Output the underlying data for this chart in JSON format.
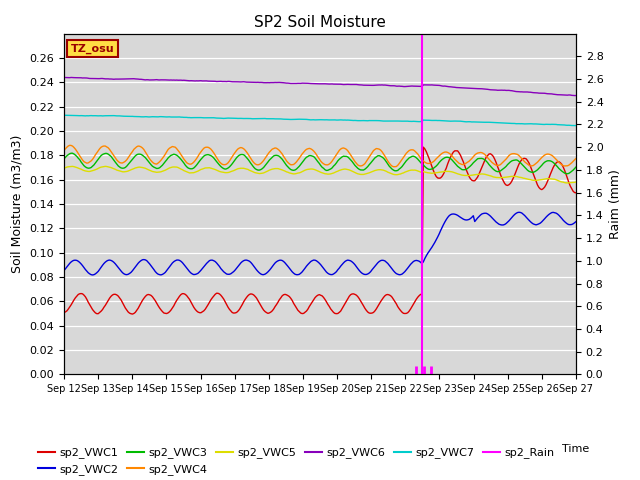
{
  "title": "SP2 Soil Moisture",
  "ylabel_left": "Soil Moisture (m3/m3)",
  "ylabel_right": "Raim (mm)",
  "xlabel": "Time",
  "ylim_left": [
    0.0,
    0.28
  ],
  "ylim_right": [
    0.0,
    3.0
  ],
  "x_tick_labels": [
    "Sep 12",
    "Sep 13",
    "Sep 14",
    "Sep 15",
    "Sep 16",
    "Sep 17",
    "Sep 18",
    "Sep 19",
    "Sep 20",
    "Sep 21",
    "Sep 22",
    "Sep 23",
    "Sep 24",
    "Sep 25",
    "Sep 26",
    "Sep 27"
  ],
  "rain_event_day": 10.5,
  "plot_bg_color": "#d8d8d8",
  "tz_osu_box_color": "#ffdd44",
  "tz_osu_text": "TZ_osu",
  "line_colors": {
    "VWC1": "#dd0000",
    "VWC2": "#0000dd",
    "VWC3": "#00bb00",
    "VWC4": "#ff8800",
    "VWC5": "#dddd00",
    "VWC6": "#8800bb",
    "VWC7": "#00cccc",
    "Rain": "#ff00ff"
  },
  "legend_order": [
    "VWC1",
    "VWC2",
    "VWC3",
    "VWC4",
    "VWC5",
    "VWC6",
    "VWC7",
    "Rain"
  ],
  "legend_labels": [
    "sp2_VWC1",
    "sp2_VWC2",
    "sp2_VWC3",
    "sp2_VWC4",
    "sp2_VWC5",
    "sp2_VWC6",
    "sp2_VWC7",
    "sp2_Rain"
  ]
}
